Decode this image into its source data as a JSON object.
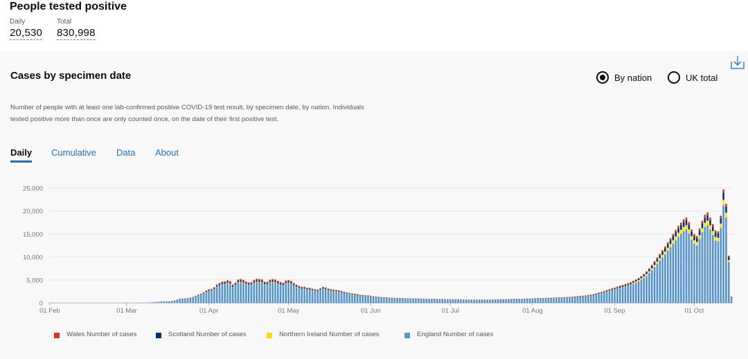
{
  "summary": {
    "title": "People tested positive",
    "daily_label": "Daily",
    "daily_value": "20,530",
    "total_label": "Total",
    "total_value": "830,998"
  },
  "card": {
    "title": "Cases by specimen date",
    "download_icon": "download-icon",
    "radio_by_nation": "By nation",
    "radio_uk_total": "UK total",
    "selected": "by_nation",
    "description": "Number of people with at least one lab-confirmed positive COVID-19 test result, by specimen date, by nation. Individuals tested positive more than once are only counted once, on the date of their first positive test.",
    "tabs": [
      "Daily",
      "Cumulative",
      "Data",
      "About"
    ],
    "active_tab": "Daily"
  },
  "colors": {
    "wales": "#d4351c",
    "scotland": "#003078",
    "northern_ireland": "#ffdd00",
    "england": "#5694ca",
    "tab_blue": "#1d70b8"
  },
  "chart_data": {
    "type": "bar",
    "stacked": true,
    "title": "Cases by specimen date",
    "xlabel": "",
    "ylabel": "",
    "ylim": [
      0,
      25000
    ],
    "yticks": [
      0,
      5000,
      10000,
      15000,
      20000,
      25000
    ],
    "ytick_labels": [
      "0",
      "5,000",
      "10,000",
      "15,000",
      "20,000",
      "25,000"
    ],
    "xtick_labels": [
      "01 Feb",
      "01 Mar",
      "01 Apr",
      "01 May",
      "01 Jun",
      "01 Jul",
      "01 Aug",
      "01 Sep",
      "01 Oct"
    ],
    "xtick_day_index": [
      0,
      29,
      60,
      90,
      121,
      151,
      182,
      213,
      243
    ],
    "start_date": "2020-02-01",
    "legend": [
      "Wales Number of cases",
      "Scotland Number of cases",
      "Northern Ireland Number of cases",
      "England Number of cases"
    ],
    "legend_position": "bottom",
    "grid": true,
    "series_order": [
      "England",
      "Northern Ireland",
      "Scotland",
      "Wales"
    ],
    "daily_totals": [
      0,
      0,
      0,
      0,
      0,
      0,
      0,
      0,
      0,
      0,
      0,
      0,
      0,
      0,
      0,
      0,
      0,
      0,
      0,
      0,
      0,
      0,
      0,
      0,
      0,
      0,
      0,
      0,
      0,
      0,
      10,
      10,
      20,
      30,
      40,
      40,
      60,
      80,
      120,
      170,
      230,
      270,
      330,
      370,
      380,
      370,
      430,
      560,
      740,
      930,
      980,
      1000,
      1070,
      1180,
      1320,
      1550,
      1830,
      2020,
      2320,
      2730,
      2950,
      3080,
      3430,
      4000,
      4360,
      4650,
      4700,
      4940,
      4760,
      4010,
      4440,
      5120,
      5230,
      5040,
      4700,
      4470,
      4530,
      5010,
      5270,
      5220,
      5110,
      4650,
      4600,
      5090,
      5210,
      5110,
      4830,
      4560,
      4390,
      4870,
      5010,
      4800,
      4350,
      4000,
      3730,
      3520,
      3520,
      3330,
      3280,
      3110,
      3010,
      2870,
      3200,
      3510,
      3400,
      3110,
      3010,
      2870,
      2840,
      2770,
      2600,
      2450,
      2300,
      2180,
      2080,
      2020,
      1920,
      1780,
      1710,
      1660,
      1650,
      1560,
      1450,
      1400,
      1350,
      1300,
      1250,
      1200,
      1150,
      1120,
      1100,
      1080,
      1060,
      1040,
      1030,
      1020,
      1000,
      990,
      980,
      960,
      950,
      930,
      920,
      910,
      900,
      890,
      870,
      860,
      850,
      840,
      830,
      820,
      810,
      800,
      790,
      780,
      770,
      760,
      750,
      740,
      730,
      720,
      710,
      710,
      720,
      730,
      740,
      760,
      780,
      800,
      810,
      820,
      840,
      850,
      870,
      880,
      890,
      910,
      920,
      940,
      960,
      980,
      1000,
      1020,
      1040,
      1060,
      1080,
      1100,
      1120,
      1140,
      1160,
      1180,
      1200,
      1220,
      1260,
      1300,
      1340,
      1380,
      1430,
      1480,
      1520,
      1580,
      1640,
      1720,
      1820,
      1940,
      2080,
      2240,
      2420,
      2620,
      2820,
      3000,
      3200,
      3380,
      3560,
      3760,
      3940,
      4120,
      4320,
      4560,
      4820,
      5120,
      5460,
      5860,
      6340,
      6900,
      7580,
      8300,
      9100,
      9900,
      10700,
      11500,
      12300,
      13200,
      14100,
      15000,
      15900,
      16800,
      17500,
      18200,
      18600,
      17600,
      16000,
      15000,
      14600,
      16200,
      17900,
      19200,
      19700,
      18600,
      17200,
      15800,
      15600,
      19000,
      24700,
      21600,
      10300,
      1400
    ]
  }
}
